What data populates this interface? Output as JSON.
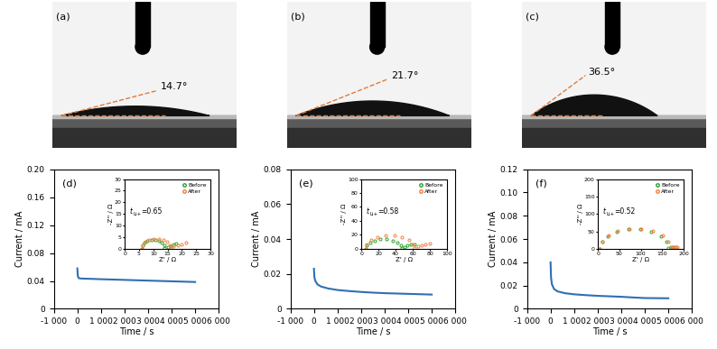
{
  "photos": [
    {
      "label": "(a)",
      "contact_angle": 14.7,
      "angle_label": "14.7°"
    },
    {
      "label": "(b)",
      "contact_angle": 21.7,
      "angle_label": "21.7°"
    },
    {
      "label": "(c)",
      "contact_angle": 36.5,
      "angle_label": "36.5°"
    }
  ],
  "chart_data": [
    {
      "type": "line",
      "label": "(d)",
      "x_label": "Time / s",
      "y_label": "Current / mA",
      "xlim": [
        -1000,
        6000
      ],
      "xticks": [
        {
          "value": -1000,
          "label": "-1 000"
        },
        0,
        {
          "value": 1000,
          "label": "1 000"
        },
        {
          "value": 2000,
          "label": "2 000"
        },
        {
          "value": 3000,
          "label": "3 000"
        },
        {
          "value": 4000,
          "label": "4 000"
        },
        {
          "value": 5000,
          "label": "5 000"
        },
        {
          "value": 6000,
          "label": "6 000"
        }
      ],
      "ylim": [
        0,
        0.2
      ],
      "yticks": [
        0,
        0.04,
        0.08,
        0.12,
        0.16,
        {
          "value": 0.2,
          "label": "0.20"
        }
      ],
      "series": [
        {
          "color": "#2f6fb3",
          "line_style": "solid",
          "x": [
            0,
            20,
            60,
            150,
            300,
            600,
            1000,
            1500,
            2000,
            2500,
            3000,
            3500,
            4000,
            4500,
            5000
          ],
          "values": [
            0.058,
            0.047,
            0.044,
            0.0435,
            0.0433,
            0.043,
            0.0425,
            0.042,
            0.0415,
            0.041,
            0.0405,
            0.04,
            0.0395,
            0.039,
            0.0385
          ]
        }
      ],
      "inset": {
        "type": "scatter",
        "x_label": "Z' / Ω",
        "y_label": "-Z'' / Ω",
        "legend": "upper right",
        "xlim": [
          0,
          30
        ],
        "xticks": [
          0,
          5,
          10,
          15,
          20,
          25,
          30
        ],
        "ylim": [
          0,
          30
        ],
        "yticks": [
          0,
          5,
          10,
          15,
          20,
          25,
          30
        ],
        "annotation": {
          "text": "t",
          "subscript": "Li+",
          "rest": "=0.65"
        },
        "series": [
          {
            "name": "Before",
            "color": "#2ca02c",
            "marker": "circle",
            "x": [
              6,
              6.24,
              6.94,
              8,
              9.3,
              10.7,
              12,
              13.06,
              13.76,
              14,
              15,
              16,
              17,
              18
            ],
            "values": [
              0,
              1.37,
              2.57,
              3.46,
              3.94,
              3.94,
              3.46,
              2.57,
              1.37,
              0.3,
              0.8,
              1.3,
              1.8,
              2.3
            ]
          },
          {
            "name": "After",
            "color": "#f07f3c",
            "marker": "circle",
            "x": [
              6,
              6.3,
              7.17,
              8.5,
              10.13,
              11.87,
              13.5,
              14.83,
              15.7,
              16,
              17,
              18.5,
              20,
              21.5
            ],
            "values": [
              0,
              1.54,
              2.89,
              3.9,
              4.43,
              4.43,
              3.9,
              2.89,
              1.54,
              0.4,
              1.0,
              1.5,
              2.0,
              2.5
            ]
          }
        ]
      }
    },
    {
      "type": "line",
      "label": "(e)",
      "x_label": "Time / s",
      "y_label": "Current / mA",
      "xlim": [
        -1000,
        6000
      ],
      "xticks": [
        {
          "value": -1000,
          "label": "-1 000"
        },
        0,
        {
          "value": 1000,
          "label": "1 000"
        },
        {
          "value": 2000,
          "label": "2 000"
        },
        {
          "value": 3000,
          "label": "3 000"
        },
        {
          "value": 4000,
          "label": "4 000"
        },
        {
          "value": 5000,
          "label": "5 000"
        },
        {
          "value": 6000,
          "label": "6 000"
        }
      ],
      "ylim": [
        0,
        0.08
      ],
      "yticks": [
        0,
        0.02,
        0.04,
        0.06,
        0.08
      ],
      "series": [
        {
          "color": "#2f6fb3",
          "line_style": "solid",
          "x": [
            0,
            20,
            60,
            150,
            300,
            600,
            1000,
            1500,
            2000,
            2500,
            3000,
            3500,
            4000,
            4500,
            5000
          ],
          "values": [
            0.023,
            0.018,
            0.016,
            0.014,
            0.0128,
            0.0117,
            0.0108,
            0.0102,
            0.0097,
            0.0093,
            0.009,
            0.0088,
            0.0086,
            0.0084,
            0.0082
          ]
        }
      ],
      "inset": {
        "type": "scatter",
        "x_label": "Z' / Ω",
        "y_label": "-Z'' / Ω",
        "legend": "upper right",
        "xlim": [
          0,
          100
        ],
        "xticks": [
          0,
          20,
          40,
          60,
          80,
          100
        ],
        "ylim": [
          0,
          100
        ],
        "yticks": [
          0,
          20,
          40,
          60,
          80,
          100
        ],
        "annotation": {
          "text": "t",
          "subscript": "Li+",
          "rest": "=0.58"
        },
        "series": [
          {
            "name": "Before",
            "color": "#2ca02c",
            "marker": "circle",
            "x": [
              5,
              6.26,
              9.91,
              15.5,
              22.35,
              29.65,
              36.5,
              42.09,
              45.74,
              47,
              50,
              54,
              58,
              62
            ],
            "values": [
              0,
              4.79,
              9,
              12.12,
              13.79,
              13.79,
              12.12,
              9,
              4.79,
              1,
              3,
              4.5,
              6,
              7
            ]
          },
          {
            "name": "After",
            "color": "#f07f3c",
            "marker": "circle",
            "x": [
              5,
              6.71,
              11.67,
              19.25,
              28.54,
              38.46,
              47.75,
              55.33,
              60.29,
              62,
              66,
              70,
              75,
              80
            ],
            "values": [
              0,
              6.84,
              12.86,
              17.32,
              19.7,
              19.7,
              17.32,
              12.86,
              6.84,
              1.5,
              4,
              5.5,
              7,
              8
            ]
          }
        ]
      }
    },
    {
      "type": "line",
      "label": "(f)",
      "x_label": "Time / s",
      "y_label": "Current / mA",
      "xlim": [
        -1000,
        6000
      ],
      "xticks": [
        {
          "value": -1000,
          "label": "-1 000"
        },
        0,
        {
          "value": 1000,
          "label": "1 000"
        },
        {
          "value": 2000,
          "label": "2 000"
        },
        {
          "value": 3000,
          "label": "3 000"
        },
        {
          "value": 4000,
          "label": "4 000"
        },
        {
          "value": 5000,
          "label": "5 000"
        },
        {
          "value": 6000,
          "label": "6 000"
        }
      ],
      "ylim": [
        0,
        0.12
      ],
      "yticks": [
        0,
        0.02,
        0.04,
        0.06,
        0.08,
        {
          "value": 0.1,
          "label": "0.10"
        },
        0.12
      ],
      "series": [
        {
          "color": "#2f6fb3",
          "line_style": "solid",
          "x": [
            0,
            20,
            60,
            150,
            300,
            600,
            1000,
            1500,
            2000,
            2500,
            3000,
            3500,
            4000,
            4500,
            5000
          ],
          "values": [
            0.04,
            0.027,
            0.021,
            0.017,
            0.015,
            0.0135,
            0.0125,
            0.0118,
            0.0112,
            0.0108,
            0.0104,
            0.0098,
            0.0093,
            0.0092,
            0.0091
          ]
        }
      ],
      "inset": {
        "type": "scatter",
        "x_label": "Z' / Ω",
        "y_label": "-Z'' / Ω",
        "legend": "upper right",
        "xlim": [
          0,
          200
        ],
        "xticks": [
          0,
          50,
          100,
          150,
          200
        ],
        "ylim": [
          0,
          200
        ],
        "yticks": [
          0,
          50,
          100,
          150,
          200
        ],
        "annotation": {
          "text": "t",
          "subscript": "Li+",
          "rest": "=0.52"
        },
        "series": [
          {
            "name": "Before",
            "color": "#2ca02c",
            "marker": "circle",
            "x": [
              5,
              9.8,
              23.72,
              45,
              71.08,
              98.92,
              125,
              146.28,
              160.2,
              165,
              170,
              175,
              180
            ],
            "values": [
              0,
              19.49,
              36.65,
              49.36,
              56.15,
              56.15,
              49.36,
              36.65,
              19.49,
              2,
              4,
              5,
              6
            ]
          },
          {
            "name": "After",
            "color": "#f07f3c",
            "marker": "circle",
            "x": [
              5,
              9.95,
              24.3,
              46.25,
              73.15,
              101.85,
              128.75,
              150.7,
              165.05,
              170,
              175,
              180,
              185
            ],
            "values": [
              0,
              19.84,
              37.29,
              50.23,
              57.13,
              57.13,
              50.23,
              37.29,
              19.84,
              2,
              4,
              5,
              6
            ]
          }
        ]
      }
    }
  ]
}
